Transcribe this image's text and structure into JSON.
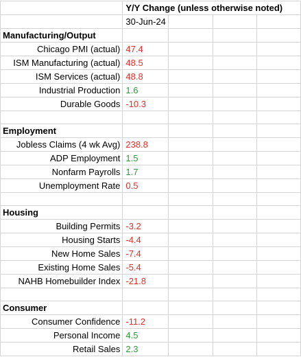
{
  "header": {
    "title": "Y/Y Change (unless otherwise noted)",
    "date": "30-Jun-24"
  },
  "colors": {
    "negative": "#e0302a",
    "positive": "#2b9c35",
    "gridline": "#d4d4d4"
  },
  "rows": [
    {
      "type": "section",
      "label": "Manufacturing/Output"
    },
    {
      "type": "item",
      "label": "Chicago PMI (actual)",
      "value": "47.4",
      "tone": "neg"
    },
    {
      "type": "item",
      "label": "ISM Manufacturing (actual)",
      "value": "48.5",
      "tone": "neg"
    },
    {
      "type": "item",
      "label": "ISM Services (actual)",
      "value": "48.8",
      "tone": "neg"
    },
    {
      "type": "item",
      "label": "Industrial Production",
      "value": "1.6",
      "tone": "pos"
    },
    {
      "type": "item",
      "label": "Durable Goods",
      "value": "-10.3",
      "tone": "neg"
    },
    {
      "type": "blank"
    },
    {
      "type": "section",
      "label": "Employment"
    },
    {
      "type": "item",
      "label": "Jobless Claims (4 wk Avg)",
      "value": "238.8",
      "tone": "neg"
    },
    {
      "type": "item",
      "label": "ADP Employment",
      "value": "1.5",
      "tone": "pos"
    },
    {
      "type": "item",
      "label": "Nonfarm Payrolls",
      "value": "1.7",
      "tone": "pos"
    },
    {
      "type": "item",
      "label": "Unemployment Rate",
      "value": "0.5",
      "tone": "neg"
    },
    {
      "type": "blank"
    },
    {
      "type": "section",
      "label": "Housing"
    },
    {
      "type": "item",
      "label": "Building Permits",
      "value": "-3.2",
      "tone": "neg"
    },
    {
      "type": "item",
      "label": "Housing Starts",
      "value": "-4.4",
      "tone": "neg"
    },
    {
      "type": "item",
      "label": "New Home Sales",
      "value": "-7.4",
      "tone": "neg"
    },
    {
      "type": "item",
      "label": "Existing Home Sales",
      "value": "-5.4",
      "tone": "neg"
    },
    {
      "type": "item",
      "label": "NAHB Homebuilder Index",
      "value": "-21.8",
      "tone": "neg"
    },
    {
      "type": "blank"
    },
    {
      "type": "section",
      "label": "Consumer"
    },
    {
      "type": "item",
      "label": "Consumer Confidence",
      "value": "-11.2",
      "tone": "neg"
    },
    {
      "type": "item",
      "label": "Personal Income",
      "value": "4.5",
      "tone": "pos"
    },
    {
      "type": "item",
      "label": "Retail Sales",
      "value": "2.3",
      "tone": "pos"
    }
  ]
}
